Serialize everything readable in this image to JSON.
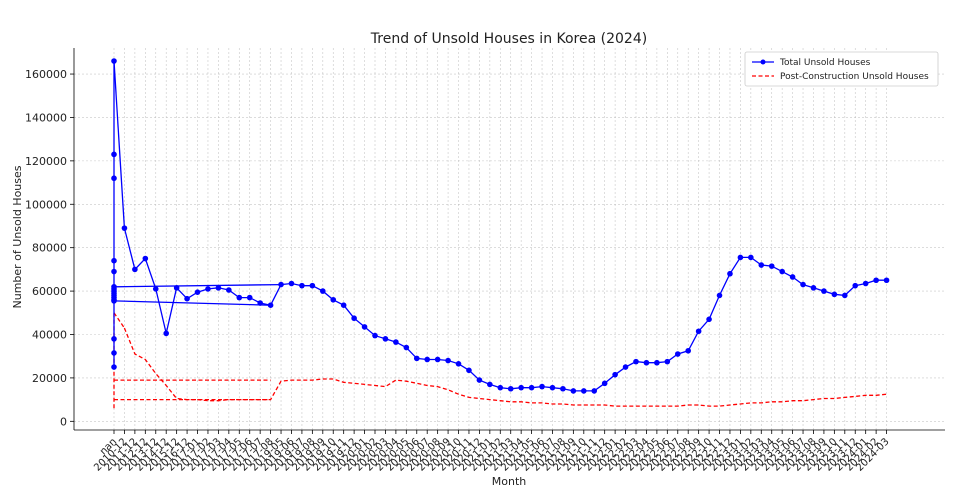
{
  "chart_data": {
    "type": "line",
    "title": "Trend of Unsold Houses in Korea (2024)",
    "xlabel": "Month",
    "ylabel": "Number of Unsold Houses",
    "ylim": [
      -4000,
      172000
    ],
    "yticks": [
      0,
      20000,
      40000,
      60000,
      80000,
      100000,
      120000,
      140000,
      160000
    ],
    "grid": true,
    "legend_position": "top-right",
    "categories": [
      "nan",
      "2010-12",
      "2011-12",
      "2012-12",
      "2013-12",
      "2014-12",
      "2015-12",
      "2016-12",
      "2017-01",
      "2017-02",
      "2017-03",
      "2017-04",
      "2017-05",
      "2017-06",
      "2017-07",
      "2017-08",
      "2019-05",
      "2019-06",
      "2019-07",
      "2019-08",
      "2019-09",
      "2019-10",
      "2019-11",
      "2019-12",
      "2020-01",
      "2020-02",
      "2020-03",
      "2020-04",
      "2020-05",
      "2020-06",
      "2020-07",
      "2020-08",
      "2020-09",
      "2020-10",
      "2020-11",
      "2020-12",
      "2021-01",
      "2021-02",
      "2021-03",
      "2021-04",
      "2021-05",
      "2021-06",
      "2021-07",
      "2021-08",
      "2021-09",
      "2021-10",
      "2021-11",
      "2021-12",
      "2022-01",
      "2022-02",
      "2022-03",
      "2022-04",
      "2022-05",
      "2022-06",
      "2022-07",
      "2022-08",
      "2022-09",
      "2022-10",
      "2022-11",
      "2022-12",
      "2023-01",
      "2023-02",
      "2023-03",
      "2023-04",
      "2023-05",
      "2023-06",
      "2023-07",
      "2023-08",
      "2023-09",
      "2023-10",
      "2023-11",
      "2023-12",
      "2024-01",
      "2024-02",
      "2024-03"
    ],
    "series": [
      {
        "name": "Total Unsold Houses",
        "color": "#0000ff",
        "style": "solid-marker",
        "points": [
          {
            "x": "nan",
            "y": 166000
          },
          {
            "x": "nan",
            "y": 123000
          },
          {
            "x": "nan",
            "y": 112000
          },
          {
            "x": "nan",
            "y": 74000
          },
          {
            "x": "nan",
            "y": 69000
          },
          {
            "x": "nan",
            "y": 62000
          },
          {
            "x": "nan",
            "y": 61000
          },
          {
            "x": "nan",
            "y": 60000
          },
          {
            "x": "nan",
            "y": 59000
          },
          {
            "x": "nan",
            "y": 58000
          },
          {
            "x": "nan",
            "y": 57000
          },
          {
            "x": "nan",
            "y": 56000
          },
          {
            "x": "nan",
            "y": 55500
          },
          {
            "x": "nan",
            "y": 38000
          },
          {
            "x": "nan",
            "y": 31500
          },
          {
            "x": "nan",
            "y": 25000
          }
        ],
        "values": [
          null,
          89000,
          70000,
          75000,
          61000,
          40500,
          61500,
          56500,
          59500,
          61000,
          61500,
          60500,
          57000,
          57000,
          54500,
          53500,
          63000,
          63500,
          62500,
          62500,
          60000,
          56000,
          53500,
          47500,
          43500,
          39500,
          38000,
          36500,
          34000,
          29000,
          28500,
          28500,
          28000,
          26500,
          23500,
          19000,
          17000,
          15500,
          15000,
          15500,
          15500,
          16000,
          15500,
          15000,
          14000,
          14000,
          14000,
          17500,
          21500,
          25000,
          27500,
          27000,
          27000,
          27500,
          31000,
          32500,
          41500,
          47000,
          58000,
          68000,
          75500,
          75500,
          72000,
          71500,
          69000,
          66500,
          63000,
          61500,
          60000,
          58500,
          58000,
          62500,
          63500,
          65000,
          65000
        ]
      },
      {
        "name": "Post-Construction Unsold Houses",
        "color": "#ff0000",
        "style": "dashed",
        "values": [
          null,
          43000,
          31000,
          28500,
          22000,
          16500,
          10500,
          10000,
          10000,
          9500,
          9500,
          10000,
          10000,
          10000,
          10000,
          10000,
          18500,
          19000,
          19000,
          19000,
          19500,
          19500,
          18000,
          17500,
          17000,
          16500,
          16000,
          19000,
          18500,
          17500,
          16500,
          16000,
          14500,
          12500,
          11000,
          10500,
          10000,
          9500,
          9000,
          9000,
          8500,
          8500,
          8000,
          8000,
          7500,
          7500,
          7500,
          7500,
          7000,
          7000,
          7000,
          7000,
          7000,
          7000,
          7000,
          7500,
          7500,
          7000,
          7000,
          7500,
          8000,
          8500,
          8500,
          9000,
          9000,
          9500,
          9500,
          10000,
          10500,
          10500,
          11000,
          11500,
          12000,
          12000,
          12500
        ],
        "extra_segments": [
          [
            {
              "x": "nan",
              "y": 50000
            },
            {
              "x": "2010-12",
              "y": 43000
            }
          ],
          [
            {
              "x": "nan",
              "y": 19000
            },
            {
              "x": "2017-08",
              "y": 19000
            }
          ],
          [
            {
              "x": "nan",
              "y": 10000
            },
            {
              "x": "2017-08",
              "y": 10000
            }
          ],
          [
            {
              "x": "nan",
              "y": 6000
            },
            {
              "x": "nan",
              "y": 50000
            }
          ]
        ]
      }
    ],
    "extra_total_segments": [
      [
        {
          "x": "nan",
          "y": 62000
        },
        {
          "x": "2019-05",
          "y": 63000
        }
      ],
      [
        {
          "x": "nan",
          "y": 55500
        },
        {
          "x": "2017-08",
          "y": 53500
        }
      ]
    ]
  }
}
